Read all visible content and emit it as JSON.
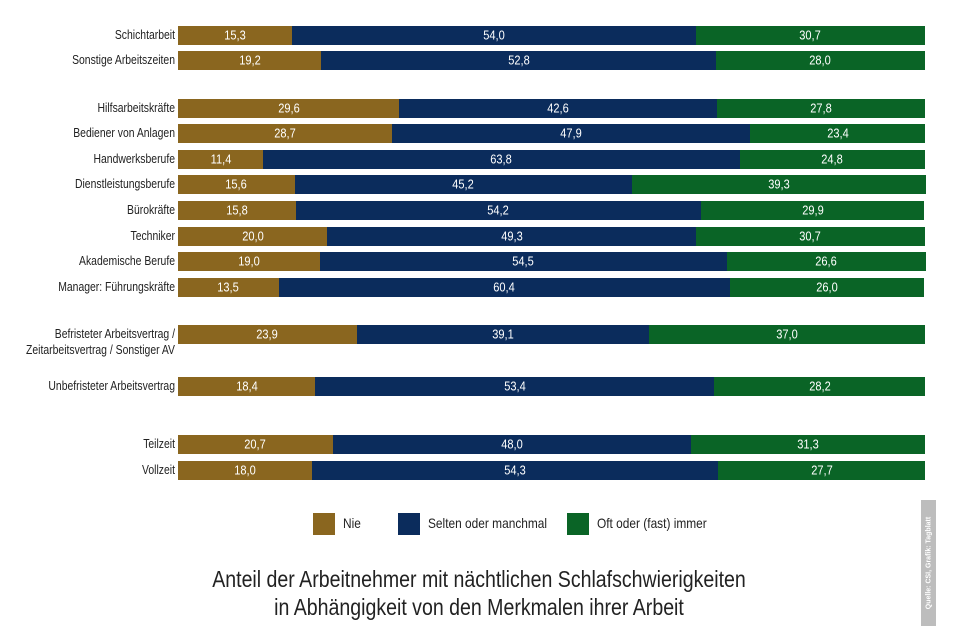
{
  "chart_data": {
    "type": "stacked-bar-horizontal",
    "title": [
      "Anteil der Arbeitnehmer mit nächtlichen Schlafschwierigkeiten",
      "in Abhängigkeit von den Merkmalen ihrer Arbeit"
    ],
    "source": "Quelle: CSI, Grafik: Tagblatt",
    "categories": [
      "Schichtarbeit",
      "Sonstige Arbeitszeiten",
      "Hilfsarbeitskräfte",
      "Bediener von Anlagen",
      "Handwerksberufe",
      "Dienstleistungsberufe",
      "Bürokräfte",
      "Techniker",
      "Akademische Berufe",
      "Manager: Führungskräfte",
      "Befristeter Arbeitsvertrag / Zeitarbeitsvertrag / Sonstiger AV",
      "Unbefristeter Arbeitsvertrag",
      "Teilzeit",
      "Vollzeit"
    ],
    "xlim": [
      0,
      100
    ],
    "legend": "bottom",
    "series": [
      {
        "name": "Nie",
        "color": "#8a661f",
        "values": [
          15.3,
          19.2,
          29.6,
          28.7,
          11.4,
          15.6,
          15.8,
          20.0,
          19.0,
          13.5,
          23.9,
          18.4,
          20.7,
          18.0
        ],
        "value_labels": [
          "15,3",
          "19,2",
          "29,6",
          "28,7",
          "11,4",
          "15,6",
          "15,8",
          "20,0",
          "19,0",
          "13,5",
          "23,9",
          "18,4",
          "20,7",
          "18,0"
        ]
      },
      {
        "name": "Selten oder manchmal",
        "color": "#0b2c5c",
        "values": [
          54.0,
          52.8,
          42.6,
          47.9,
          63.8,
          45.2,
          54.2,
          49.3,
          54.5,
          60.4,
          39.1,
          53.4,
          48.0,
          54.3
        ],
        "value_labels": [
          "54,0",
          "52,8",
          "42,6",
          "47,9",
          "63,8",
          "45,2",
          "54,2",
          "49,3",
          "54,5",
          "60,4",
          "39,1",
          "53,4",
          "48,0",
          "54,3"
        ]
      },
      {
        "name": "Oft oder (fast) immer",
        "color": "#0a6426",
        "values": [
          30.7,
          28.0,
          27.8,
          23.4,
          24.8,
          39.3,
          29.9,
          30.7,
          26.6,
          26.0,
          37.0,
          28.2,
          31.3,
          27.7
        ],
        "value_labels": [
          "30,7",
          "28,0",
          "27,8",
          "23,4",
          "24,8",
          "39,3",
          "29,9",
          "30,7",
          "26,6",
          "26,0",
          "37,0",
          "28,2",
          "31,3",
          "27,7"
        ]
      }
    ]
  }
}
